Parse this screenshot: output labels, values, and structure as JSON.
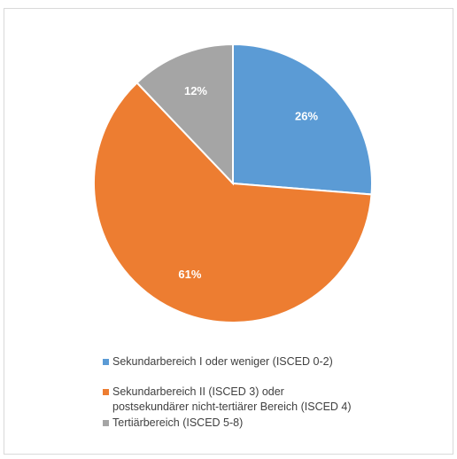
{
  "chart_data": {
    "type": "pie",
    "slices": [
      {
        "label": "Sekundarbereich I oder weniger (ISCED 0-2)",
        "value": 26,
        "data_label": "26%",
        "color": "#5b9bd5"
      },
      {
        "label": "Sekundarbereich II (ISCED 3) oder\npostsekundärer nicht-tertiärer Bereich (ISCED 4)",
        "value": 61,
        "data_label": "61%",
        "color": "#ed7d31"
      },
      {
        "label": "Tertiärbereich (ISCED 5-8)",
        "value": 12,
        "data_label": "12%",
        "color": "#a5a5a5"
      }
    ],
    "start_angle": "12 o'clock",
    "direction": "clockwise",
    "legend_position": "bottom"
  }
}
